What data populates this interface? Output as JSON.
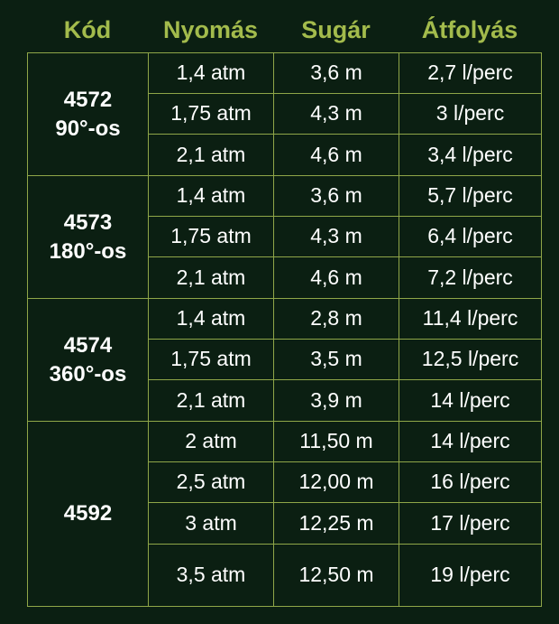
{
  "headers": {
    "code": "Kód",
    "pressure": "Nyomás",
    "radius": "Sugár",
    "flow": "Átfolyás"
  },
  "groups": [
    {
      "code": "4572",
      "angle": "90°-os",
      "rows": [
        {
          "pressure": "1,4 atm",
          "radius": "3,6 m",
          "flow": "2,7 l/perc"
        },
        {
          "pressure": "1,75 atm",
          "radius": "4,3 m",
          "flow": "3 l/perc"
        },
        {
          "pressure": "2,1 atm",
          "radius": "4,6 m",
          "flow": "3,4 l/perc"
        }
      ]
    },
    {
      "code": "4573",
      "angle": "180°-os",
      "rows": [
        {
          "pressure": "1,4 atm",
          "radius": "3,6 m",
          "flow": "5,7 l/perc"
        },
        {
          "pressure": "1,75 atm",
          "radius": "4,3 m",
          "flow": "6,4 l/perc"
        },
        {
          "pressure": "2,1 atm",
          "radius": "4,6 m",
          "flow": "7,2 l/perc"
        }
      ]
    },
    {
      "code": "4574",
      "angle": "360°-os",
      "rows": [
        {
          "pressure": "1,4 atm",
          "radius": "2,8 m",
          "flow": "11,4 l/perc"
        },
        {
          "pressure": "1,75 atm",
          "radius": "3,5 m",
          "flow": "12,5 l/perc"
        },
        {
          "pressure": "2,1 atm",
          "radius": "3,9 m",
          "flow": "14 l/perc"
        }
      ]
    },
    {
      "code": "4592",
      "angle": "",
      "rows": [
        {
          "pressure": "2 atm",
          "radius": "11,50 m",
          "flow": "14 l/perc"
        },
        {
          "pressure": "2,5 atm",
          "radius": "12,00 m",
          "flow": "16 l/perc"
        },
        {
          "pressure": "3 atm",
          "radius": "12,25 m",
          "flow": "17 l/perc"
        },
        {
          "pressure": "3,5 atm",
          "radius": "12,50 m",
          "flow": "19 l/perc"
        }
      ]
    }
  ],
  "colors": {
    "background": "#0b1f12",
    "header_text": "#a3bb4c",
    "border": "#8fa648",
    "cell_text": "#ffffff"
  }
}
